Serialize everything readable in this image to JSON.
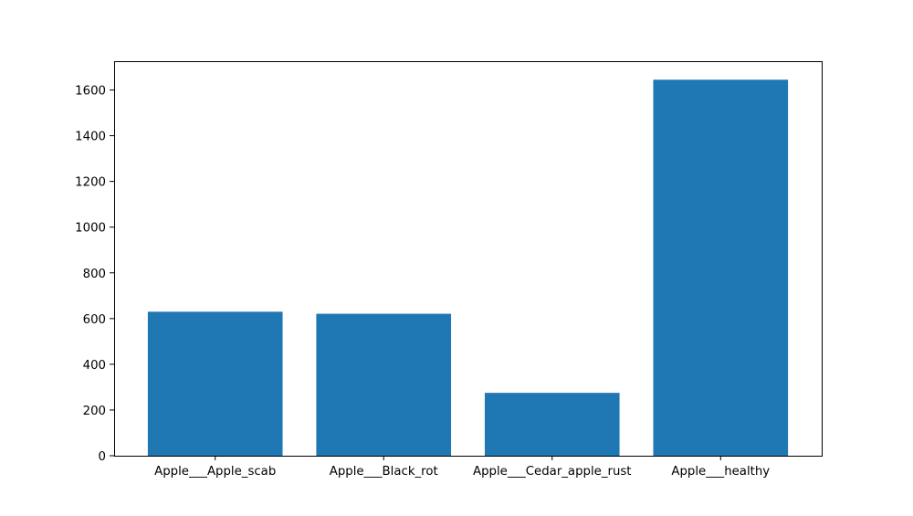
{
  "chart_data": {
    "type": "bar",
    "categories": [
      "Apple___Apple_scab",
      "Apple___Black_rot",
      "Apple___Cedar_apple_rust",
      "Apple___healthy"
    ],
    "values": [
      630,
      621,
      275,
      1645
    ],
    "ylim": [
      0,
      1726
    ],
    "yticks": [
      0,
      200,
      400,
      600,
      800,
      1000,
      1200,
      1400,
      1600
    ],
    "grid": false,
    "bar_color": "#1f77b4",
    "title": "",
    "xlabel": "",
    "ylabel": ""
  }
}
